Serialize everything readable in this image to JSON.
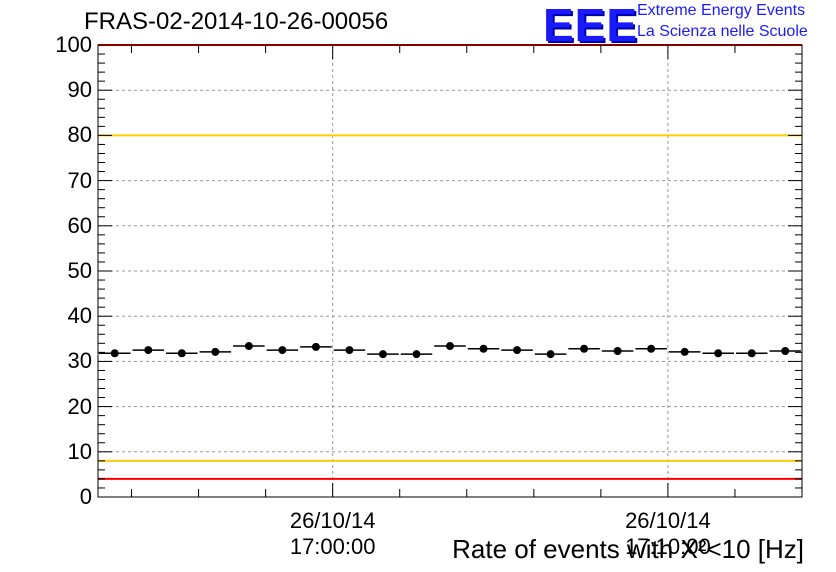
{
  "header": {
    "run_title": "FRAS-02-2014-10-26-00056",
    "logo_text": "EEE",
    "logo_line1": "Extreme Energy Events",
    "logo_line2": "La Scienza nelle Scuole"
  },
  "chart_data": {
    "type": "scatter",
    "title": "FRAS-02-2014-10-26-00056",
    "xlabel": "Rate of events with X²<10 [Hz]",
    "ylabel": "",
    "ylim": [
      0,
      100
    ],
    "yticks": [
      0,
      10,
      20,
      30,
      40,
      50,
      60,
      70,
      80,
      90,
      100
    ],
    "grid": true,
    "x_tick_labels": [
      {
        "date": "26/10/14",
        "time": "17:00:00"
      },
      {
        "date": "26/10/14",
        "time": "17:10:00"
      }
    ],
    "series": [
      {
        "values": [
          31.8,
          32.5,
          31.8,
          32.1,
          33.4,
          32.5,
          33.2,
          32.5,
          31.6,
          31.6,
          33.4,
          32.8,
          32.5,
          31.6,
          32.8,
          32.3,
          32.8,
          32.1,
          31.8,
          31.8,
          32.3
        ],
        "color": "#000000"
      }
    ],
    "reference_lines": [
      {
        "value": 100,
        "color": "#ff0000"
      },
      {
        "value": 80,
        "color": "#ffcc00"
      },
      {
        "value": 8,
        "color": "#ffcc00"
      },
      {
        "value": 4,
        "color": "#ff0000"
      }
    ]
  }
}
